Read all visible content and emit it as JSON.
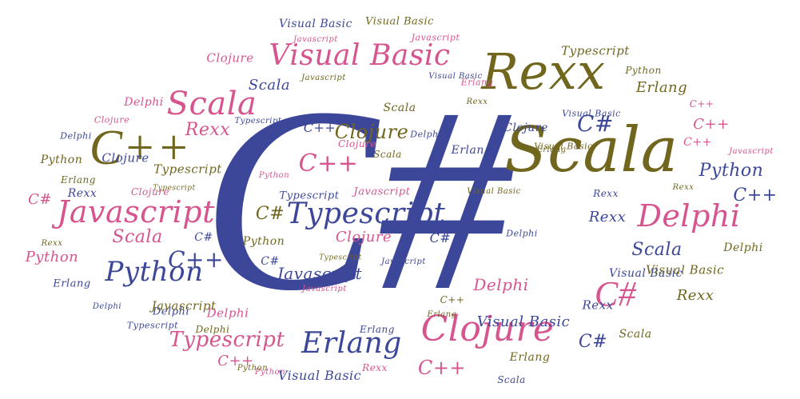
{
  "colors": {
    "navy": "#3c4799",
    "pink": "#d6558f",
    "olive": "#70661e"
  },
  "words": [
    "C#",
    "Scala",
    "Rexx",
    "Typescript",
    "Javascript",
    "Python",
    "Clojure",
    "Erlang",
    "Delphi",
    "Visual Basic",
    "C++",
    "Scala",
    "Visual Basic",
    "Visual Basic",
    "Visual Basic",
    "Javascript",
    "Javascript",
    "Typescript",
    "Python",
    "Clojure",
    "Javascript",
    "Erlang",
    "Erlang",
    "Scala",
    "Scala",
    "Delphi",
    "Rexx",
    "C++",
    "C++",
    "Rexx",
    "Typescript",
    "Clojure",
    "C#",
    "Clojure",
    "Clojure",
    "Erlang",
    "Visual Basic",
    "Delphi",
    "C++",
    "Scala",
    "Delphi",
    "Python",
    "Clojure",
    "Visual Basic",
    "Typescript",
    "Python",
    "C++",
    "Visual Basic",
    "C#",
    "Rexx",
    "C++",
    "Clojure",
    "Rexx",
    "C#",
    "Erlang",
    "Python",
    "Typescript",
    "Javascript",
    "Typescript",
    "Rexx",
    "C#",
    "Delphi",
    "Scala",
    "Clojure",
    "C#",
    "C#",
    "C++",
    "Python",
    "Rexx",
    "Scala",
    "C#",
    "Javascript",
    "Typescript",
    "Javascript",
    "Delphi",
    "Visual Basic",
    "Delphi",
    "Delphi",
    "Python",
    "Javascript",
    "Erlang",
    "Rexx",
    "C++",
    "Delphi",
    "Erlang",
    "Visual Basic",
    "Delphi",
    "Rexx",
    "Typescript",
    "Javascript",
    "Typescript",
    "Delphi",
    "C++",
    "Erlang",
    "Scala",
    "C#",
    "Python",
    "Rexx",
    "Erlang",
    "C++",
    "Python",
    "Visual Basic",
    "Scala",
    "C++",
    "Erlang",
    "Clojure",
    "Visual Basic",
    "Rexx",
    "Javascript"
  ]
}
